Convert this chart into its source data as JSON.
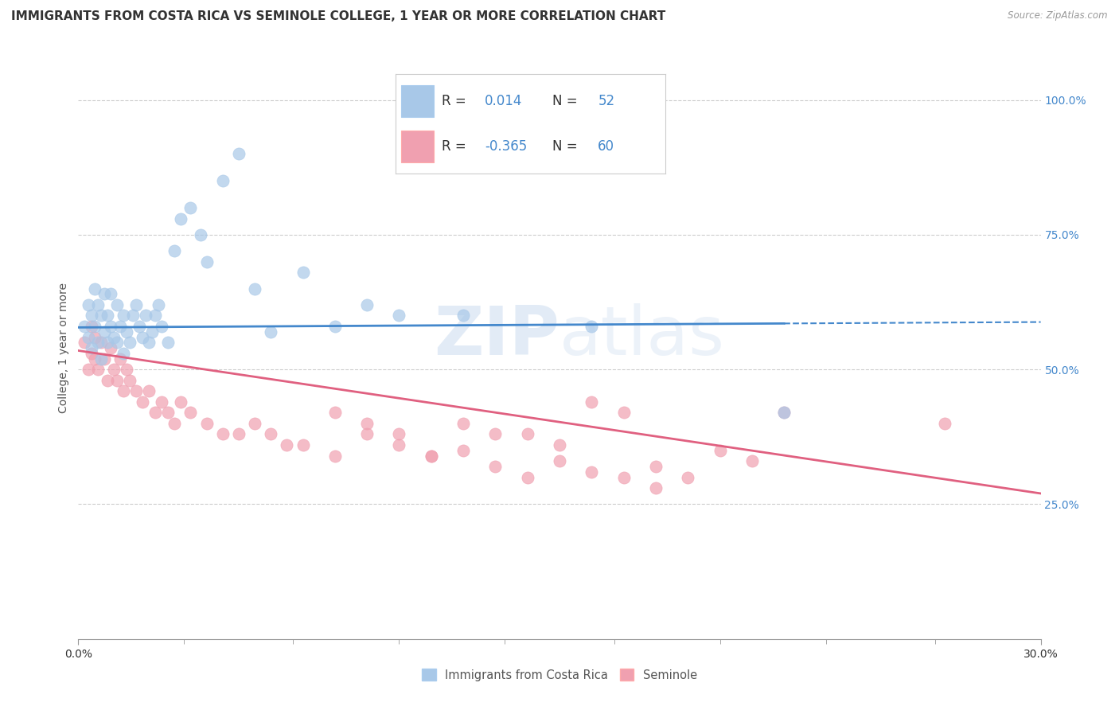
{
  "title": "IMMIGRANTS FROM COSTA RICA VS SEMINOLE COLLEGE, 1 YEAR OR MORE CORRELATION CHART",
  "source_text": "Source: ZipAtlas.com",
  "ylabel": "College, 1 year or more",
  "xlim": [
    0.0,
    0.3
  ],
  "ylim": [
    0.0,
    1.08
  ],
  "xtick_vals": [
    0.0,
    0.3
  ],
  "xtick_labels": [
    "0.0%",
    "30.0%"
  ],
  "ytick_vals_right": [
    0.25,
    0.5,
    0.75,
    1.0
  ],
  "ytick_labels_right": [
    "25.0%",
    "50.0%",
    "75.0%",
    "100.0%"
  ],
  "legend_label1": "Immigrants from Costa Rica",
  "legend_label2": "Seminole",
  "blue_color": "#A8C8E8",
  "pink_color": "#F0A0B0",
  "blue_line_color": "#4488CC",
  "pink_line_color": "#E06080",
  "watermark_zip": "ZIP",
  "watermark_atlas": "atlas",
  "background_color": "#FFFFFF",
  "grid_color": "#CCCCCC",
  "blue_scatter_x": [
    0.002,
    0.003,
    0.003,
    0.004,
    0.004,
    0.005,
    0.005,
    0.006,
    0.006,
    0.007,
    0.007,
    0.008,
    0.008,
    0.009,
    0.009,
    0.01,
    0.01,
    0.011,
    0.012,
    0.012,
    0.013,
    0.014,
    0.014,
    0.015,
    0.016,
    0.017,
    0.018,
    0.019,
    0.02,
    0.021,
    0.022,
    0.023,
    0.024,
    0.025,
    0.026,
    0.028,
    0.03,
    0.032,
    0.035,
    0.038,
    0.04,
    0.045,
    0.05,
    0.055,
    0.06,
    0.07,
    0.08,
    0.09,
    0.1,
    0.12,
    0.16,
    0.22
  ],
  "blue_scatter_y": [
    0.58,
    0.62,
    0.56,
    0.6,
    0.54,
    0.65,
    0.58,
    0.55,
    0.62,
    0.52,
    0.6,
    0.57,
    0.64,
    0.55,
    0.6,
    0.58,
    0.64,
    0.56,
    0.55,
    0.62,
    0.58,
    0.6,
    0.53,
    0.57,
    0.55,
    0.6,
    0.62,
    0.58,
    0.56,
    0.6,
    0.55,
    0.57,
    0.6,
    0.62,
    0.58,
    0.55,
    0.72,
    0.78,
    0.8,
    0.75,
    0.7,
    0.85,
    0.9,
    0.65,
    0.57,
    0.68,
    0.58,
    0.62,
    0.6,
    0.6,
    0.58,
    0.42
  ],
  "pink_scatter_x": [
    0.002,
    0.003,
    0.004,
    0.004,
    0.005,
    0.005,
    0.006,
    0.007,
    0.008,
    0.009,
    0.01,
    0.011,
    0.012,
    0.013,
    0.014,
    0.015,
    0.016,
    0.018,
    0.02,
    0.022,
    0.024,
    0.026,
    0.028,
    0.03,
    0.032,
    0.035,
    0.04,
    0.045,
    0.05,
    0.055,
    0.06,
    0.065,
    0.07,
    0.08,
    0.09,
    0.1,
    0.11,
    0.12,
    0.13,
    0.14,
    0.15,
    0.16,
    0.17,
    0.18,
    0.19,
    0.2,
    0.21,
    0.22,
    0.16,
    0.17,
    0.14,
    0.15,
    0.13,
    0.12,
    0.11,
    0.1,
    0.09,
    0.08,
    0.27,
    0.18
  ],
  "pink_scatter_y": [
    0.55,
    0.5,
    0.58,
    0.53,
    0.56,
    0.52,
    0.5,
    0.55,
    0.52,
    0.48,
    0.54,
    0.5,
    0.48,
    0.52,
    0.46,
    0.5,
    0.48,
    0.46,
    0.44,
    0.46,
    0.42,
    0.44,
    0.42,
    0.4,
    0.44,
    0.42,
    0.4,
    0.38,
    0.38,
    0.4,
    0.38,
    0.36,
    0.36,
    0.34,
    0.38,
    0.36,
    0.34,
    0.35,
    0.32,
    0.3,
    0.33,
    0.31,
    0.3,
    0.32,
    0.3,
    0.35,
    0.33,
    0.42,
    0.44,
    0.42,
    0.38,
    0.36,
    0.38,
    0.4,
    0.34,
    0.38,
    0.4,
    0.42,
    0.4,
    0.28
  ],
  "blue_trend_x": [
    0.0,
    0.3
  ],
  "blue_trend_y": [
    0.578,
    0.588
  ],
  "pink_trend_x": [
    0.0,
    0.3
  ],
  "pink_trend_y": [
    0.535,
    0.27
  ],
  "title_fontsize": 11,
  "axis_label_fontsize": 10,
  "tick_fontsize": 10,
  "legend_fontsize": 12,
  "rn_fontsize": 12,
  "rn_color": "#4488CC"
}
